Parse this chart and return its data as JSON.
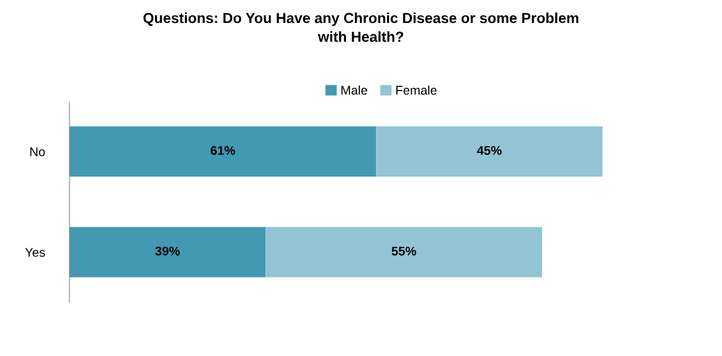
{
  "chart_data": {
    "type": "bar",
    "orientation": "horizontal",
    "stacked": true,
    "title": "Questions: Do You Have any Chronic Disease or some Problem\nwith Health?",
    "categories": [
      "No",
      "Yes"
    ],
    "series": [
      {
        "name": "Male",
        "color": "#4399b1",
        "values": [
          61,
          39
        ],
        "value_labels": [
          "61%",
          "39%"
        ]
      },
      {
        "name": "Female",
        "color": "#93c4d5",
        "values": [
          45,
          55
        ],
        "value_labels": [
          "45%",
          "55%"
        ]
      }
    ],
    "legend": "top",
    "grid": false,
    "tick_labels": "y"
  }
}
